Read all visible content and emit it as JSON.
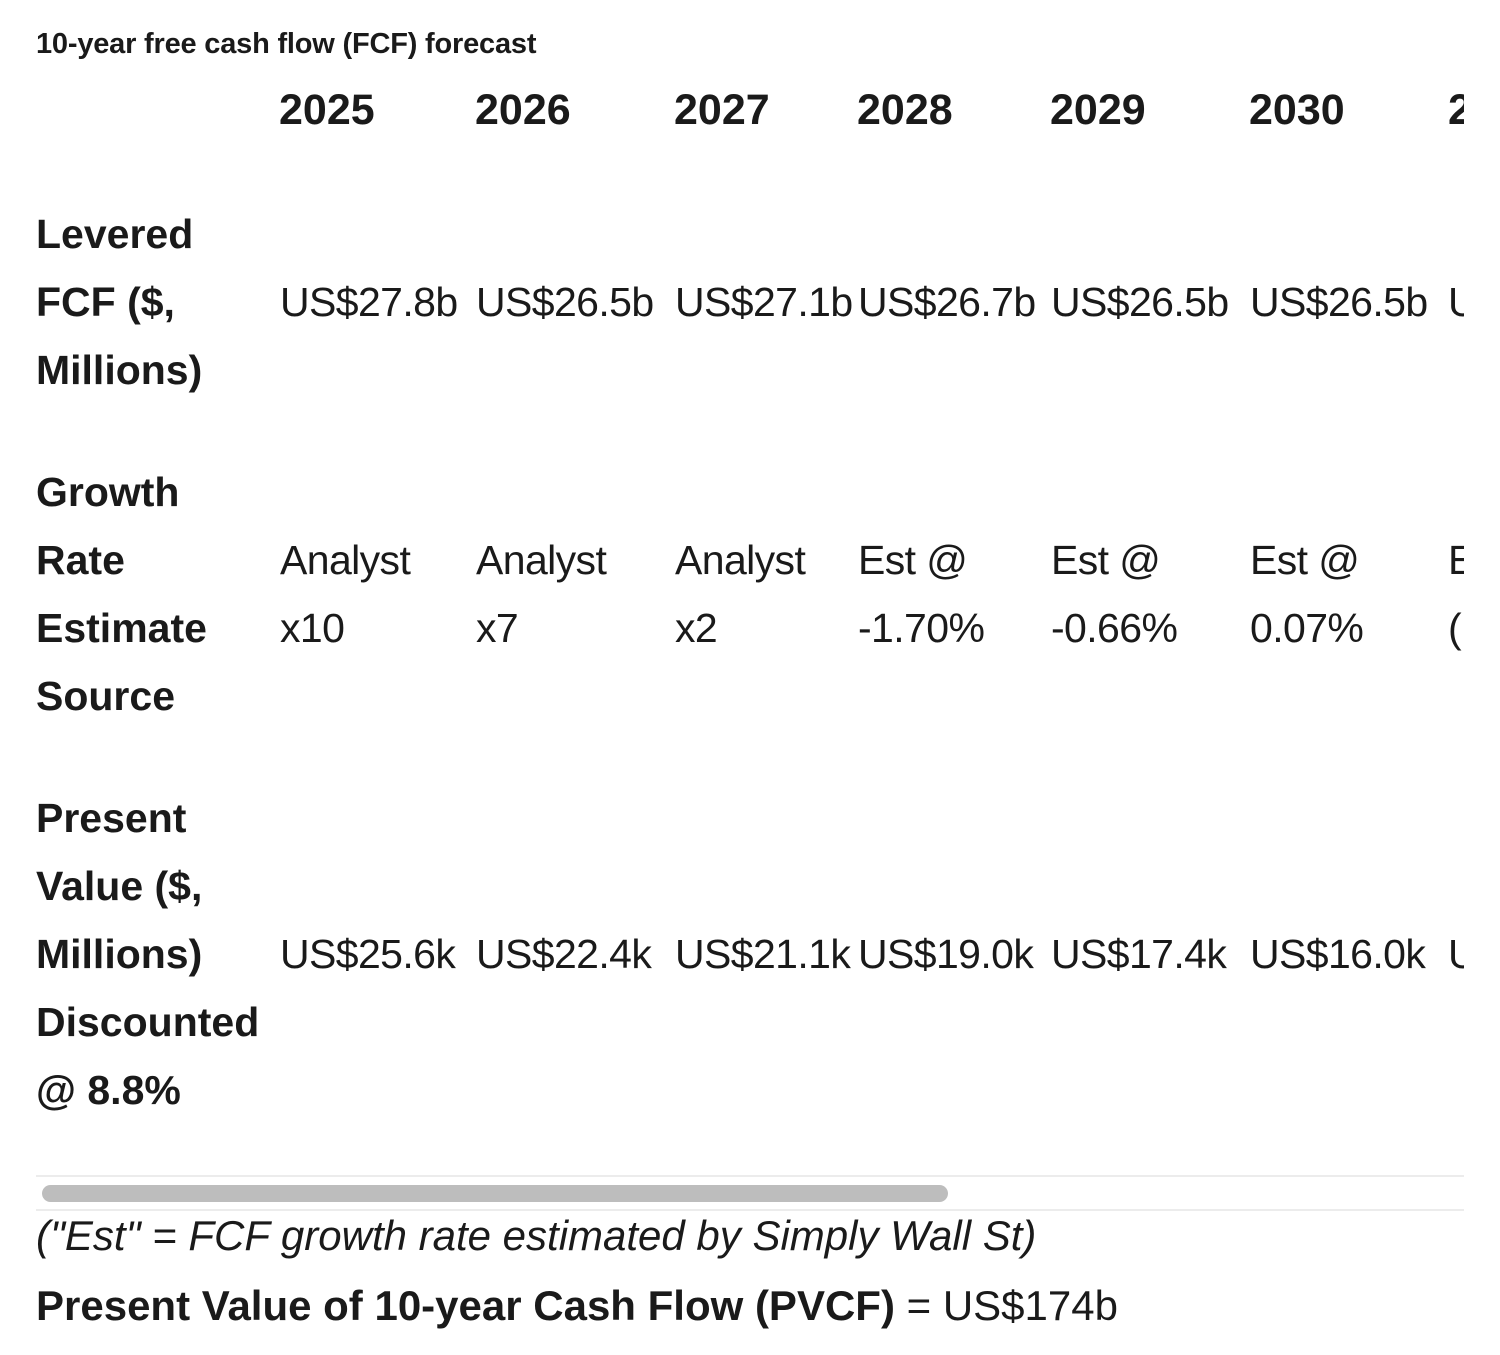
{
  "caption": "10-year free cash flow (FCF) forecast",
  "table": {
    "years": [
      "2025",
      "2026",
      "2027",
      "2028",
      "2029",
      "2030",
      "2"
    ],
    "rows": {
      "fcf": {
        "label_lines": [
          "Levered",
          "FCF ($,",
          "Millions)"
        ],
        "values": [
          "US$27.8b",
          "US$26.5b",
          "US$27.1b",
          "US$26.7b",
          "US$26.5b",
          "US$26.5b",
          "U"
        ]
      },
      "growth": {
        "label_lines": [
          "Growth",
          "Rate",
          "Estimate",
          "Source"
        ],
        "values": [
          [
            "Analyst",
            "x10"
          ],
          [
            "Analyst",
            "x7"
          ],
          [
            "Analyst",
            "x2"
          ],
          [
            "Est @",
            "-1.70%"
          ],
          [
            "Est @",
            "-0.66%"
          ],
          [
            "Est @",
            "0.07%"
          ],
          [
            "E",
            "("
          ]
        ]
      },
      "pv": {
        "label_lines": [
          "Present",
          "Value ($,",
          "Millions)",
          "Discounted",
          "@ 8.8%"
        ],
        "values": [
          "US$25.6k",
          "US$22.4k",
          "US$21.1k",
          "US$19.0k",
          "US$17.4k",
          "US$16.0k",
          "U"
        ]
      }
    }
  },
  "scrollbar": {
    "position_fraction": 0.0,
    "visible_fraction": 0.64
  },
  "note": "(\"Est\" = FCF growth rate estimated by Simply Wall St)",
  "pvcf": {
    "label": "Present Value of 10-year Cash Flow (PVCF)",
    "separator": " = ",
    "value": "US$174b"
  }
}
